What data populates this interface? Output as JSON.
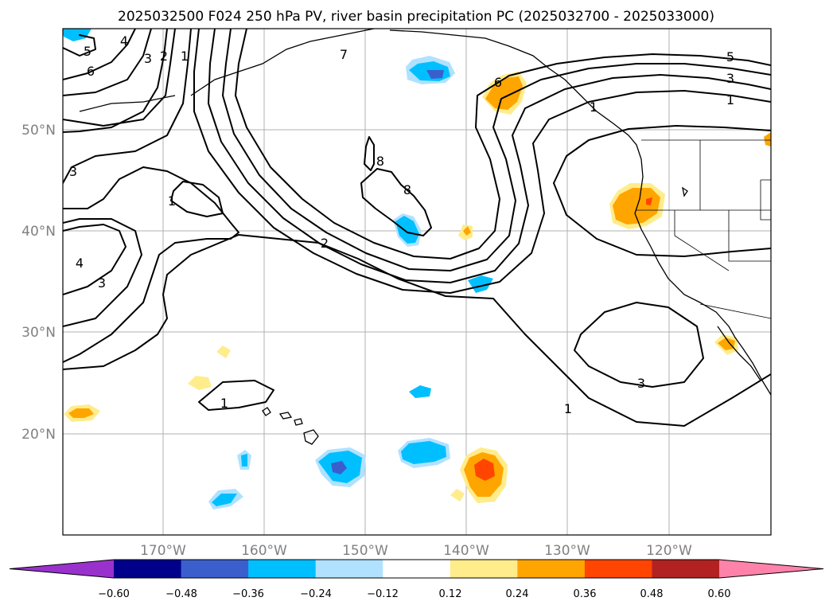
{
  "title": "2025032500 F024 250 hPa PV, river basin precipitation PC (2025032700 - 2025033000)",
  "map": {
    "lat_labels": [
      "50°N",
      "40°N",
      "30°N",
      "20°N"
    ],
    "lon_labels": [
      "170°W",
      "160°W",
      "150°W",
      "140°W",
      "130°W",
      "120°W"
    ],
    "lat_range": [
      10,
      60
    ],
    "lon_range": [
      -180,
      -110
    ],
    "grid": true
  },
  "contours": {
    "variable": "250 hPa PV",
    "labels": [
      "5",
      "4",
      "3",
      "2",
      "1",
      "6",
      "7",
      "8",
      "8",
      "1",
      "2",
      "3",
      "3",
      "4",
      "1",
      "3",
      "1",
      "6",
      "5",
      "3",
      "1",
      "1"
    ]
  },
  "colorbar": {
    "ticks": [
      "−0.60",
      "−0.48",
      "−0.36",
      "−0.24",
      "−0.12",
      "0.12",
      "0.24",
      "0.36",
      "0.48",
      "0.60"
    ],
    "colors": [
      "#9932CC",
      "#00008B",
      "#3A5FCD",
      "#00BFFF",
      "#B0E2FF",
      "#FFFFFF",
      "#FFEC8B",
      "#FFA500",
      "#FF4500",
      "#B22222",
      "#FF82AB"
    ],
    "extend": "both"
  }
}
